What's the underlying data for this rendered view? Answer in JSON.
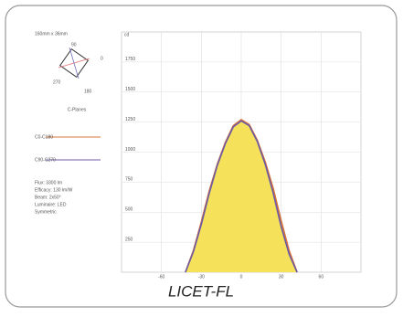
{
  "caption": "LICET-FL",
  "panel": {
    "size": "160mm x 36mm",
    "planes_label": "C-Planes",
    "diagram_labels": [
      "90",
      "0",
      "270",
      "180"
    ],
    "info": [
      "Flux: 3300 lm",
      "Efficacy: 130 lm/W",
      "Beam: 2x50°",
      "Luminaire: LED",
      "Symmetric"
    ]
  },
  "chart_data": {
    "type": "area",
    "unit_label": "cd",
    "x": [
      -42,
      -36,
      -30,
      -24,
      -18,
      -12,
      -6,
      0,
      6,
      12,
      18,
      24,
      30,
      36,
      42
    ],
    "series": [
      {
        "name": "C0-C180",
        "color": "#d9743a",
        "fill": "#f5e15a",
        "values": [
          0,
          180,
          420,
          680,
          900,
          1080,
          1220,
          1270,
          1230,
          1100,
          920,
          700,
          430,
          180,
          0
        ]
      },
      {
        "name": "C90-C270",
        "color": "#6c5aa6",
        "values": [
          0,
          170,
          400,
          660,
          890,
          1070,
          1210,
          1260,
          1220,
          1090,
          900,
          660,
          380,
          150,
          0
        ]
      }
    ],
    "xlim": [
      -90,
      90
    ],
    "xticks": [
      -60,
      -30,
      0,
      30,
      60
    ],
    "ylim": [
      0,
      2000
    ],
    "yticks": [
      250,
      500,
      750,
      1000,
      1250,
      1500,
      1750
    ],
    "grid": true
  }
}
